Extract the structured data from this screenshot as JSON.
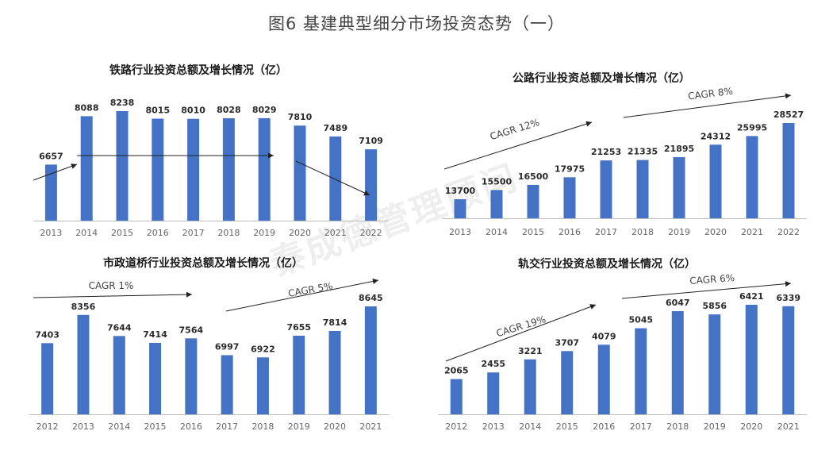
{
  "title": "图6 基建典型细分市场投资态势（一）",
  "watermark": "秦成德管理顾问",
  "colors": {
    "bar": "#4472C4",
    "axis": "#bfbfbf",
    "arrow": "#222222"
  },
  "chart_data": [
    {
      "type": "bar",
      "title": "铁路行业投资总额及增长情况（亿）",
      "categories": [
        "2013",
        "2014",
        "2015",
        "2016",
        "2017",
        "2018",
        "2019",
        "2020",
        "2021",
        "2022"
      ],
      "values": [
        6657,
        8088,
        8238,
        8015,
        8010,
        8028,
        8029,
        7810,
        7489,
        7109
      ],
      "ylim": [
        5000,
        8500
      ],
      "annotations": []
    },
    {
      "type": "bar",
      "title": "公路行业投资总额及增长情况（亿）",
      "categories": [
        "2013",
        "2014",
        "2015",
        "2016",
        "2017",
        "2018",
        "2019",
        "2020",
        "2021",
        "2022"
      ],
      "values": [
        13700,
        15500,
        16500,
        17975,
        21253,
        21335,
        21895,
        24312,
        25995,
        28527
      ],
      "ylim": [
        10000,
        30000
      ],
      "annotations": [
        {
          "label": "CAGR",
          "value": "12%"
        },
        {
          "label": "CAGR",
          "value": "8%"
        }
      ]
    },
    {
      "type": "bar",
      "title": "市政道桥行业投资总额及增长情况（亿）",
      "categories": [
        "2012",
        "2013",
        "2014",
        "2015",
        "2016",
        "2017",
        "2018",
        "2019",
        "2020",
        "2021"
      ],
      "values": [
        7403,
        8356,
        7644,
        7414,
        7564,
        6997,
        6922,
        7655,
        7814,
        8645
      ],
      "ylim": [
        5000,
        9000
      ],
      "annotations": [
        {
          "label": "CAGR",
          "value": "1%"
        },
        {
          "label": "CAGR",
          "value": "5%"
        }
      ]
    },
    {
      "type": "bar",
      "title": "轨交行业投资总额及增长情况（亿）",
      "categories": [
        "2012",
        "2013",
        "2014",
        "2015",
        "2016",
        "2017",
        "2018",
        "2019",
        "2020",
        "2021"
      ],
      "values": [
        2065,
        2455,
        3221,
        3707,
        4079,
        5045,
        6047,
        5856,
        6421,
        6339
      ],
      "ylim": [
        0,
        7000
      ],
      "annotations": [
        {
          "label": "CAGR",
          "value": "19%"
        },
        {
          "label": "CAGR",
          "value": "6%"
        }
      ]
    }
  ]
}
